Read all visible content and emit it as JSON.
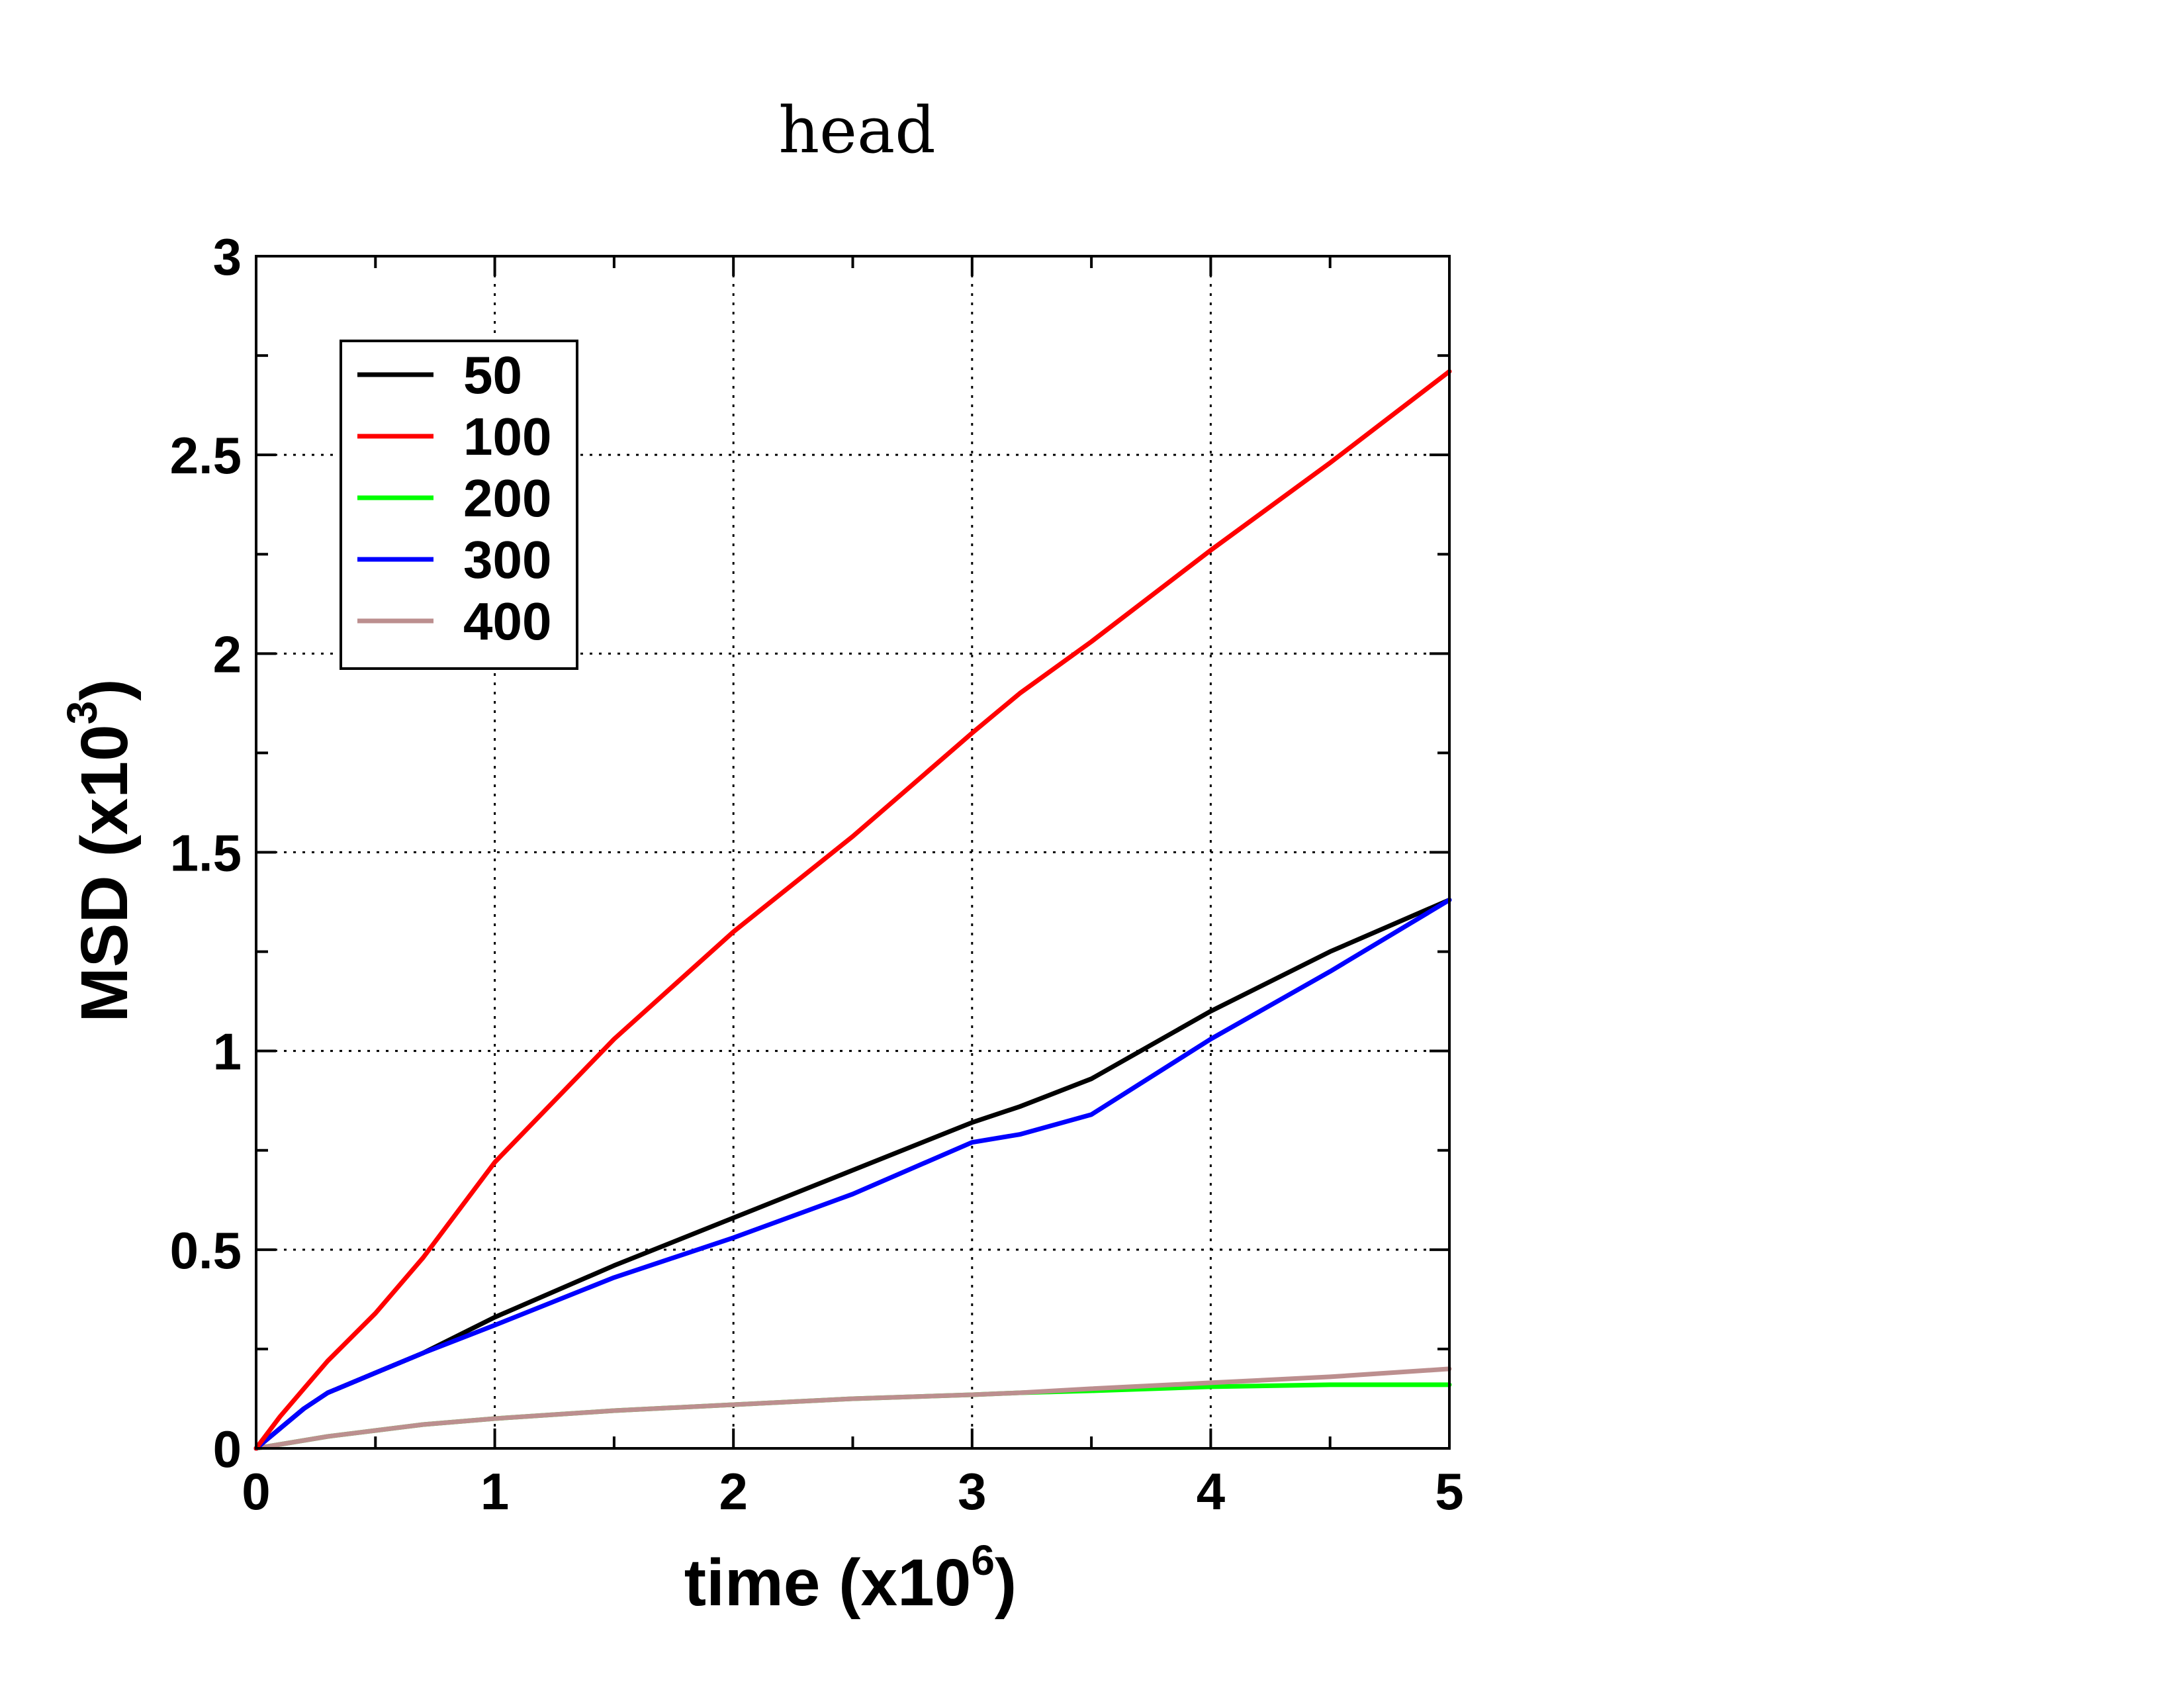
{
  "chart_data": {
    "type": "line",
    "title": "head",
    "xlabel": "time (x10",
    "xlabel_sup": "6",
    "xlabel_end": ")",
    "ylabel": "MSD (x10",
    "ylabel_sup": "3",
    "ylabel_end": ")",
    "xlim": [
      0,
      5
    ],
    "ylim": [
      0,
      3
    ],
    "grid": true,
    "legend_position": "top-left",
    "x_ticks": [
      0,
      1,
      2,
      3,
      4,
      5
    ],
    "x_tick_labels": [
      "0",
      "1",
      "2",
      "3",
      "4",
      "5"
    ],
    "y_ticks": [
      0,
      0.5,
      1,
      1.5,
      2,
      2.5,
      3
    ],
    "y_tick_labels": [
      "0",
      "0.5",
      "1",
      "1.5",
      "2",
      "2.5",
      "3"
    ],
    "x": [
      0,
      0.1,
      0.2,
      0.3,
      0.5,
      0.7,
      1.0,
      1.5,
      2.0,
      2.5,
      3.0,
      3.2,
      3.5,
      4.0,
      4.5,
      5.0
    ],
    "series": [
      {
        "name": "50",
        "color": "#000000",
        "values": [
          0.0,
          0.05,
          0.1,
          0.14,
          0.19,
          0.24,
          0.33,
          0.46,
          0.58,
          0.7,
          0.82,
          0.86,
          0.93,
          1.1,
          1.25,
          1.38
        ]
      },
      {
        "name": "100",
        "color": "#ff0000",
        "values": [
          0.0,
          0.08,
          0.15,
          0.22,
          0.34,
          0.48,
          0.72,
          1.03,
          1.3,
          1.54,
          1.8,
          1.9,
          2.03,
          2.26,
          2.48,
          2.71
        ]
      },
      {
        "name": "200",
        "color": "#00ff00",
        "values": [
          0.0,
          0.01,
          0.02,
          0.03,
          0.045,
          0.06,
          0.075,
          0.095,
          0.11,
          0.125,
          0.135,
          0.14,
          0.145,
          0.155,
          0.16,
          0.16
        ]
      },
      {
        "name": "300",
        "color": "#0000ff",
        "values": [
          0.0,
          0.05,
          0.1,
          0.14,
          0.19,
          0.24,
          0.31,
          0.43,
          0.53,
          0.64,
          0.77,
          0.79,
          0.84,
          1.03,
          1.2,
          1.38
        ]
      },
      {
        "name": "400",
        "color": "#bc8f8f",
        "values": [
          0.0,
          0.01,
          0.02,
          0.03,
          0.045,
          0.06,
          0.075,
          0.095,
          0.11,
          0.125,
          0.135,
          0.14,
          0.15,
          0.165,
          0.18,
          0.2
        ]
      }
    ]
  }
}
